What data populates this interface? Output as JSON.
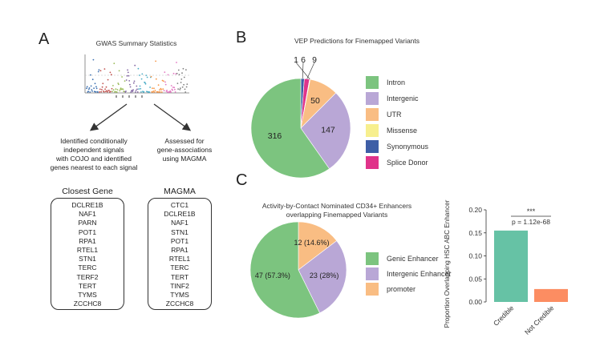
{
  "panel_a": {
    "letter": "A",
    "title": "GWAS Summary Statistics",
    "left_text": [
      "Identified conditionally",
      "independent signals",
      "with COJO and identified",
      "genes nearest to each signal"
    ],
    "right_text": [
      "Assessed for",
      "gene-associations",
      "using MAGMA"
    ],
    "closest_gene_title": "Closest Gene",
    "closest_genes": [
      "DCLRE1B",
      "NAF1",
      "PARN",
      "POT1",
      "RPA1",
      "RTEL1",
      "STN1",
      "TERC",
      "TERF2",
      "TERT",
      "TYMS",
      "ZCCHC8"
    ],
    "magma_title": "MAGMA",
    "magma_genes": [
      "CTC1",
      "DCLRE1B",
      "NAF1",
      "STN1",
      "POT1",
      "RPA1",
      "RTEL1",
      "TERC",
      "TERT",
      "TINF2",
      "TYMS",
      "ZCCHC8"
    ]
  },
  "panel_b": {
    "letter": "B"
  },
  "panel_c": {
    "letter": "C"
  },
  "chart_data": [
    {
      "type": "pie",
      "title": "VEP Predictions for Finemapped Variants",
      "categories": [
        "Intron",
        "Intergenic",
        "UTR",
        "Missense",
        "Synonymous",
        "Splice Donor"
      ],
      "values": [
        316,
        147,
        50,
        1,
        6,
        9
      ],
      "labels": [
        "316",
        "147",
        "50",
        "1",
        "6",
        "9"
      ],
      "colors": [
        "#7cc47f",
        "#b9a7d6",
        "#f9bd83",
        "#f7ef8e",
        "#3e5ea6",
        "#e0338a"
      ]
    },
    {
      "type": "pie",
      "title": "Activity-by-Contact Nominated CD34+ Enhancers overlapping Finemapped Variants",
      "title_lines": [
        "Activity-by-Contact Nominated CD34+ Enhancers",
        "overlapping Finemapped Variants"
      ],
      "categories": [
        "Genic Enhancer",
        "Intergenic Enhancer",
        "promoter"
      ],
      "values": [
        47,
        23,
        12
      ],
      "labels": [
        "47 (57.3%)",
        "23 (28%)",
        "12 (14.6%)"
      ],
      "colors": [
        "#7cc47f",
        "#b9a7d6",
        "#f9bd83"
      ]
    },
    {
      "type": "bar",
      "title": "",
      "categories": [
        "Credible",
        "Not Credible"
      ],
      "values": [
        0.155,
        0.028
      ],
      "colors": [
        "#66c2a5",
        "#fc8d62"
      ],
      "ylabel": "Proportion Overlapping HSC ABC Enhancer",
      "xlabel": "",
      "ylim": [
        0,
        0.2
      ],
      "yticks": [
        "0.00",
        "0.05",
        "0.10",
        "0.15",
        "0.20"
      ],
      "annotation": {
        "stars": "***",
        "pvalue": "p = 1.12e-68"
      }
    }
  ]
}
